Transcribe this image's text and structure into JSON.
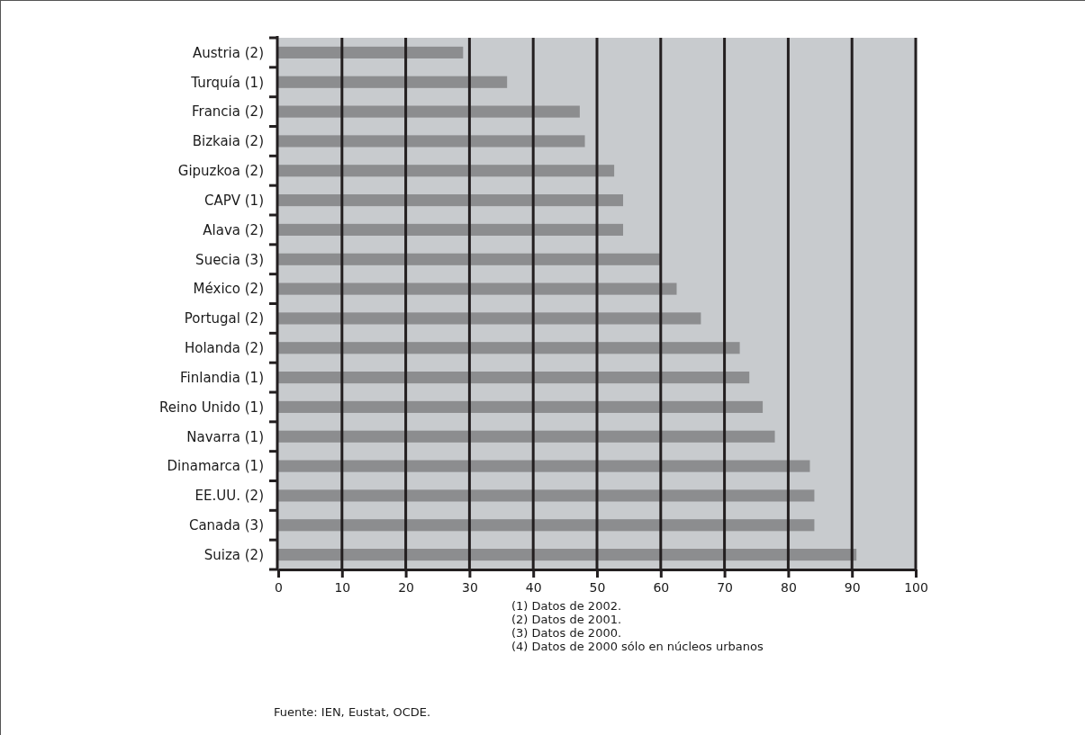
{
  "chart_data": {
    "type": "bar",
    "orientation": "horizontal",
    "categories": [
      "Austria (2)",
      "Turquía (1)",
      "Francia (2)",
      "Bizkaia (2)",
      "Gipuzkoa (2)",
      "CAPV (1)",
      "Alava (2)",
      "Suecia (3)",
      "México (2)",
      "Portugal (2)",
      "Holanda (2)",
      "Finlandia (1)",
      "Reino Unido (1)",
      "Navarra (1)",
      "Dinamarca (1)",
      "EE.UU. (2)",
      "Canada (3)",
      "Suiza (2)"
    ],
    "values": [
      29.0,
      35.9,
      47.3,
      48.1,
      52.7,
      54.1,
      54.1,
      59.9,
      62.5,
      66.3,
      72.4,
      73.9,
      76.0,
      77.9,
      83.4,
      84.1,
      84.1,
      90.7
    ],
    "color": "#8c8d8f",
    "xlim": [
      0,
      100
    ],
    "xticks": [
      0,
      10,
      20,
      30,
      40,
      50,
      60,
      70,
      80,
      90,
      100
    ],
    "grid": "x",
    "annotations": [
      "(1) Datos de 2002.",
      "(2) Datos de 2001.",
      "(3) Datos de 2000.",
      "(4) Datos de 2000 sólo en núcleos urbanos",
      "Fuente: IEN, Eustat, OCDE."
    ]
  }
}
